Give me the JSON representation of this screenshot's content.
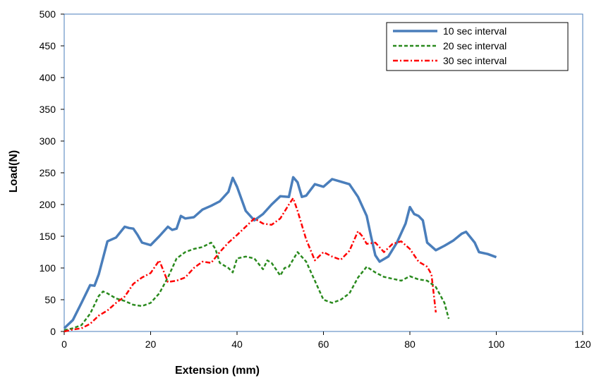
{
  "chart_data": {
    "type": "line",
    "title": "",
    "xlabel": "Extension (mm)",
    "ylabel": "Load(N)",
    "xlim": [
      0,
      120
    ],
    "ylim": [
      0,
      500
    ],
    "xticks": [
      0,
      20,
      40,
      60,
      80,
      100,
      120
    ],
    "yticks": [
      0,
      50,
      100,
      150,
      200,
      250,
      300,
      350,
      400,
      450,
      500
    ],
    "xtick_labels": [
      "0",
      "20",
      "40",
      "60",
      "80",
      "100",
      "120"
    ],
    "ytick_labels": [
      "0",
      "50",
      "100",
      "150",
      "200",
      "250",
      "300",
      "350",
      "400",
      "450",
      "500"
    ],
    "grid": false,
    "legend_position": "top-right",
    "series": [
      {
        "name": "10 sec interval",
        "color": "#4a7ebb",
        "dash": "solid",
        "points": [
          [
            0,
            5
          ],
          [
            2,
            18
          ],
          [
            4,
            45
          ],
          [
            6,
            73
          ],
          [
            7,
            72
          ],
          [
            8,
            90
          ],
          [
            10,
            142
          ],
          [
            12,
            148
          ],
          [
            14,
            165
          ],
          [
            15,
            163
          ],
          [
            16,
            162
          ],
          [
            17,
            152
          ],
          [
            18,
            140
          ],
          [
            20,
            136
          ],
          [
            22,
            150
          ],
          [
            24,
            165
          ],
          [
            25,
            160
          ],
          [
            26,
            162
          ],
          [
            27,
            182
          ],
          [
            28,
            178
          ],
          [
            30,
            180
          ],
          [
            32,
            192
          ],
          [
            34,
            198
          ],
          [
            36,
            205
          ],
          [
            38,
            220
          ],
          [
            39,
            242
          ],
          [
            40,
            228
          ],
          [
            42,
            190
          ],
          [
            44,
            175
          ],
          [
            46,
            185
          ],
          [
            48,
            200
          ],
          [
            50,
            213
          ],
          [
            52,
            212
          ],
          [
            53,
            243
          ],
          [
            54,
            235
          ],
          [
            55,
            212
          ],
          [
            56,
            214
          ],
          [
            58,
            232
          ],
          [
            60,
            228
          ],
          [
            62,
            240
          ],
          [
            64,
            236
          ],
          [
            66,
            232
          ],
          [
            68,
            212
          ],
          [
            70,
            182
          ],
          [
            71,
            150
          ],
          [
            72,
            120
          ],
          [
            73,
            110
          ],
          [
            75,
            118
          ],
          [
            77,
            140
          ],
          [
            79,
            170
          ],
          [
            80,
            196
          ],
          [
            81,
            185
          ],
          [
            82,
            182
          ],
          [
            83,
            175
          ],
          [
            84,
            140
          ],
          [
            86,
            128
          ],
          [
            88,
            135
          ],
          [
            90,
            143
          ],
          [
            92,
            154
          ],
          [
            93,
            157
          ],
          [
            95,
            140
          ],
          [
            96,
            125
          ],
          [
            98,
            122
          ],
          [
            100,
            117
          ]
        ]
      },
      {
        "name": "20 sec interval",
        "color": "#2a8a1e",
        "dash": "5,3",
        "points": [
          [
            0,
            2
          ],
          [
            2,
            5
          ],
          [
            4,
            10
          ],
          [
            6,
            28
          ],
          [
            8,
            56
          ],
          [
            9,
            63
          ],
          [
            10,
            60
          ],
          [
            12,
            52
          ],
          [
            14,
            48
          ],
          [
            16,
            42
          ],
          [
            18,
            40
          ],
          [
            20,
            45
          ],
          [
            22,
            60
          ],
          [
            24,
            85
          ],
          [
            26,
            115
          ],
          [
            28,
            125
          ],
          [
            30,
            130
          ],
          [
            32,
            133
          ],
          [
            34,
            140
          ],
          [
            35,
            130
          ],
          [
            36,
            108
          ],
          [
            38,
            100
          ],
          [
            39,
            93
          ],
          [
            40,
            115
          ],
          [
            42,
            118
          ],
          [
            44,
            115
          ],
          [
            46,
            98
          ],
          [
            47,
            112
          ],
          [
            48,
            108
          ],
          [
            50,
            88
          ],
          [
            51,
            100
          ],
          [
            52,
            102
          ],
          [
            54,
            125
          ],
          [
            56,
            110
          ],
          [
            58,
            80
          ],
          [
            60,
            50
          ],
          [
            62,
            45
          ],
          [
            64,
            50
          ],
          [
            66,
            60
          ],
          [
            68,
            85
          ],
          [
            70,
            102
          ],
          [
            72,
            93
          ],
          [
            74,
            86
          ],
          [
            76,
            83
          ],
          [
            78,
            80
          ],
          [
            80,
            87
          ],
          [
            82,
            82
          ],
          [
            84,
            80
          ],
          [
            86,
            70
          ],
          [
            88,
            45
          ],
          [
            89,
            20
          ]
        ]
      },
      {
        "name": "30 sec interval",
        "color": "#ff0000",
        "dash": "7,3,2,3",
        "points": [
          [
            0,
            0
          ],
          [
            2,
            3
          ],
          [
            4,
            5
          ],
          [
            6,
            12
          ],
          [
            8,
            25
          ],
          [
            10,
            33
          ],
          [
            12,
            45
          ],
          [
            14,
            55
          ],
          [
            16,
            75
          ],
          [
            18,
            85
          ],
          [
            20,
            92
          ],
          [
            22,
            112
          ],
          [
            23,
            95
          ],
          [
            24,
            78
          ],
          [
            26,
            80
          ],
          [
            28,
            85
          ],
          [
            30,
            100
          ],
          [
            32,
            110
          ],
          [
            34,
            108
          ],
          [
            36,
            125
          ],
          [
            38,
            140
          ],
          [
            40,
            152
          ],
          [
            42,
            165
          ],
          [
            44,
            178
          ],
          [
            46,
            170
          ],
          [
            48,
            168
          ],
          [
            50,
            178
          ],
          [
            52,
            200
          ],
          [
            53,
            210
          ],
          [
            54,
            190
          ],
          [
            56,
            145
          ],
          [
            58,
            112
          ],
          [
            60,
            125
          ],
          [
            62,
            118
          ],
          [
            64,
            113
          ],
          [
            66,
            127
          ],
          [
            68,
            158
          ],
          [
            69,
            150
          ],
          [
            70,
            138
          ],
          [
            72,
            140
          ],
          [
            74,
            125
          ],
          [
            76,
            138
          ],
          [
            78,
            142
          ],
          [
            80,
            130
          ],
          [
            82,
            110
          ],
          [
            84,
            102
          ],
          [
            85,
            90
          ],
          [
            86,
            30
          ]
        ]
      }
    ]
  }
}
